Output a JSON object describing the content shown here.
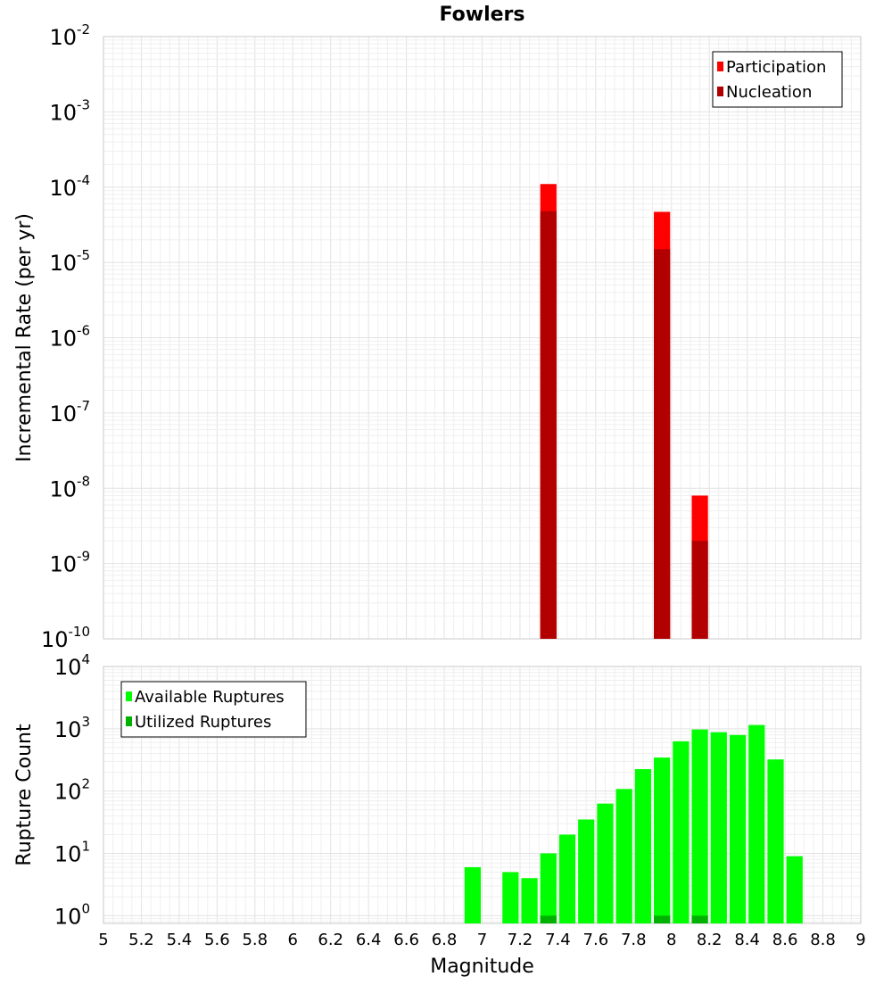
{
  "chart_data": [
    {
      "type": "bar",
      "title": "Fowlers",
      "xlabel": "",
      "ylabel": "Incremental Rate (per yr)",
      "x_range": [
        5,
        9
      ],
      "y_scale": "log",
      "y_range": [
        1e-10,
        0.01
      ],
      "y_ticks": [
        {
          "base": "10",
          "exp": "-10"
        },
        {
          "base": "10",
          "exp": "-9"
        },
        {
          "base": "10",
          "exp": "-8"
        },
        {
          "base": "10",
          "exp": "-7"
        },
        {
          "base": "10",
          "exp": "-6"
        },
        {
          "base": "10",
          "exp": "-5"
        },
        {
          "base": "10",
          "exp": "-4"
        },
        {
          "base": "10",
          "exp": "-3"
        },
        {
          "base": "10",
          "exp": "-2"
        }
      ],
      "bin_width": 0.1,
      "grid": true,
      "legend_position": "top-right",
      "series": [
        {
          "name": "Participation",
          "color": "#ff0000",
          "points": [
            {
              "x": 7.35,
              "y": 0.00011
            },
            {
              "x": 7.95,
              "y": 4.7e-05
            },
            {
              "x": 8.15,
              "y": 8e-09
            }
          ]
        },
        {
          "name": "Nucleation",
          "color": "#b20000",
          "points": [
            {
              "x": 7.35,
              "y": 4.8e-05
            },
            {
              "x": 7.95,
              "y": 1.5e-05
            },
            {
              "x": 8.15,
              "y": 2e-09
            }
          ]
        }
      ]
    },
    {
      "type": "bar",
      "title": "",
      "xlabel": "Magnitude",
      "ylabel": "Rupture Count",
      "x_range": [
        5,
        9
      ],
      "x_ticks": [
        "5",
        "5.2",
        "5.4",
        "5.6",
        "5.8",
        "6",
        "6.2",
        "6.4",
        "6.6",
        "6.8",
        "7",
        "7.2",
        "7.4",
        "7.6",
        "7.8",
        "8",
        "8.2",
        "8.4",
        "8.6",
        "8.8",
        "9"
      ],
      "y_scale": "log",
      "y_range": [
        0.75,
        10000.0
      ],
      "y_ticks": [
        {
          "base": "10",
          "exp": "0"
        },
        {
          "base": "10",
          "exp": "1"
        },
        {
          "base": "10",
          "exp": "2"
        },
        {
          "base": "10",
          "exp": "3"
        },
        {
          "base": "10",
          "exp": "4"
        }
      ],
      "bin_width": 0.1,
      "grid": true,
      "legend_position": "top-left",
      "series": [
        {
          "name": "Available Ruptures",
          "color": "#00ff00",
          "points": [
            {
              "x": 6.95,
              "y": 6
            },
            {
              "x": 7.15,
              "y": 5
            },
            {
              "x": 7.25,
              "y": 4
            },
            {
              "x": 7.35,
              "y": 10
            },
            {
              "x": 7.45,
              "y": 20
            },
            {
              "x": 7.55,
              "y": 35
            },
            {
              "x": 7.65,
              "y": 63
            },
            {
              "x": 7.75,
              "y": 108
            },
            {
              "x": 7.85,
              "y": 225
            },
            {
              "x": 7.95,
              "y": 345
            },
            {
              "x": 8.05,
              "y": 630
            },
            {
              "x": 8.15,
              "y": 975
            },
            {
              "x": 8.25,
              "y": 880
            },
            {
              "x": 8.35,
              "y": 795
            },
            {
              "x": 8.45,
              "y": 1150
            },
            {
              "x": 8.55,
              "y": 322
            },
            {
              "x": 8.65,
              "y": 9
            }
          ]
        },
        {
          "name": "Utilized Ruptures",
          "color": "#00b200",
          "points": [
            {
              "x": 7.35,
              "y": 1
            },
            {
              "x": 7.95,
              "y": 1
            },
            {
              "x": 8.15,
              "y": 1
            }
          ]
        }
      ]
    }
  ]
}
